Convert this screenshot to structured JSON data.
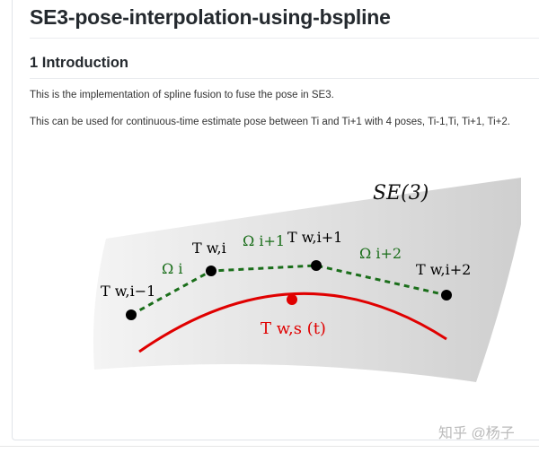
{
  "title": "SE3-pose-interpolation-using-bspline",
  "section": {
    "heading": "1 Introduction",
    "paragraphs": [
      "This is the implementation of spline fusion to fuse the pose in SE3.",
      "This can be used for continuous-time estimate pose between Ti and Ti+1 with 4 poses, Ti-1,Ti, Ti+1, Ti+2."
    ]
  },
  "figure": {
    "manifold_label": "SE(3)",
    "poses": [
      "T w,i−1",
      "T w,i",
      "T w,i+1",
      "T w,i+2"
    ],
    "increments": [
      "Ω i",
      "Ω i+1",
      "Ω i+2"
    ],
    "spline_label": "T w,s (t)",
    "colors": {
      "control": "#1a6e1a",
      "spline": "#e00000",
      "points": "#000000"
    }
  },
  "watermark": "知乎 @杨子"
}
